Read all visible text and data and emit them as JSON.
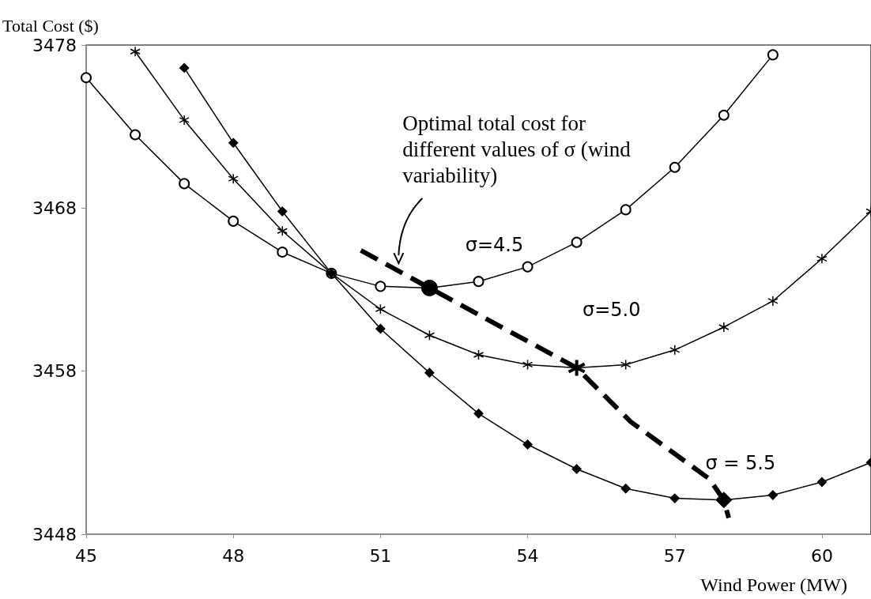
{
  "chart_data": {
    "type": "line",
    "ylabel": "Total Cost ($)",
    "xlabel": "Wind Power (MW)",
    "x": [
      45,
      46,
      47,
      48,
      49,
      50,
      51,
      52,
      53,
      54,
      55,
      56,
      57,
      58,
      59,
      60,
      61
    ],
    "xlim": [
      45,
      61
    ],
    "xticks": [
      45,
      48,
      51,
      54,
      57,
      60
    ],
    "ylim": [
      3448,
      3478
    ],
    "yticks": [
      3448,
      3458,
      3468,
      3478
    ],
    "grid": false,
    "legend": false,
    "series": [
      {
        "name": "σ=4.5",
        "color": "#000000",
        "marker": "circle",
        "values": [
          3476.0,
          3472.5,
          3469.5,
          3467.2,
          3465.3,
          3464.0,
          3463.2,
          3463.1,
          3463.5,
          3464.4,
          3465.9,
          3467.9,
          3470.5,
          3473.7,
          3477.4,
          null,
          null
        ]
      },
      {
        "name": "σ=5.0",
        "color": "#000000",
        "marker": "cross",
        "values": [
          null,
          3477.6,
          3473.4,
          3469.8,
          3466.6,
          3464.0,
          3461.8,
          3460.2,
          3459.0,
          3458.4,
          3458.2,
          3458.4,
          3459.3,
          3460.7,
          3462.3,
          3464.9,
          3467.8
        ]
      },
      {
        "name": "σ = 5.5",
        "color": "#000000",
        "marker": "diamond",
        "values": [
          null,
          null,
          3476.6,
          3472.0,
          3467.8,
          3464.0,
          3460.6,
          3457.9,
          3455.4,
          3453.5,
          3452.0,
          3450.8,
          3450.2,
          3450.1,
          3450.4,
          3451.2,
          3452.4
        ]
      },
      {
        "type": "line",
        "color": "#000000",
        "marker": "none",
        "line_style": "dashed",
        "x": [
          50.6,
          52,
          55,
          56.1,
          57.7,
          58,
          58.1
        ],
        "values": [
          3465.4,
          3463.1,
          3458.2,
          3454.9,
          3451.4,
          3450.1,
          3449.0
        ]
      },
      {
        "type": "scatter",
        "color": "#000000",
        "marker": "circle",
        "x": [
          52
        ],
        "values": [
          3463.1
        ]
      },
      {
        "type": "scatter",
        "color": "#000000",
        "marker": "cross",
        "x": [
          55
        ],
        "values": [
          3458.2
        ]
      },
      {
        "type": "scatter",
        "color": "#000000",
        "marker": "diamond",
        "x": [
          58
        ],
        "values": [
          3450.1
        ]
      }
    ],
    "annotations": [
      "Optimal total cost for different values of σ (wind variability)"
    ]
  }
}
